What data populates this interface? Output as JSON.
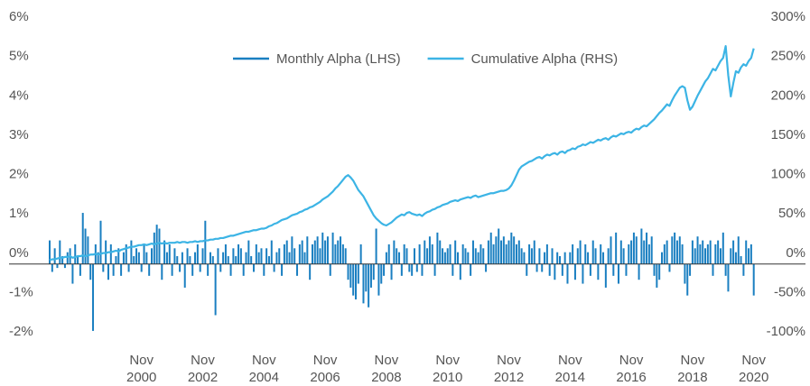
{
  "chart_data": {
    "type": "bar",
    "categories": [
      "1997-11",
      "1997-12",
      "1998-01",
      "1998-02",
      "1998-03",
      "1998-04",
      "1998-05",
      "1998-06",
      "1998-07",
      "1998-08",
      "1998-09",
      "1998-10",
      "1998-11",
      "1998-12",
      "1999-01",
      "1999-02",
      "1999-03",
      "1999-04",
      "1999-05",
      "1999-06",
      "1999-07",
      "1999-08",
      "1999-09",
      "1999-10",
      "1999-11",
      "1999-12",
      "2000-01",
      "2000-02",
      "2000-03",
      "2000-04",
      "2000-05",
      "2000-06",
      "2000-07",
      "2000-08",
      "2000-09",
      "2000-10",
      "2000-11",
      "2000-12",
      "2001-01",
      "2001-02",
      "2001-03",
      "2001-04",
      "2001-05",
      "2001-06",
      "2001-07",
      "2001-08",
      "2001-09",
      "2001-10",
      "2001-11",
      "2001-12",
      "2002-01",
      "2002-02",
      "2002-03",
      "2002-04",
      "2002-05",
      "2002-06",
      "2002-07",
      "2002-08",
      "2002-09",
      "2002-10",
      "2002-11",
      "2002-12",
      "2003-01",
      "2003-02",
      "2003-03",
      "2003-04",
      "2003-05",
      "2003-06",
      "2003-07",
      "2003-08",
      "2003-09",
      "2003-10",
      "2003-11",
      "2003-12",
      "2004-01",
      "2004-02",
      "2004-03",
      "2004-04",
      "2004-05",
      "2004-06",
      "2004-07",
      "2004-08",
      "2004-09",
      "2004-10",
      "2004-11",
      "2004-12",
      "2005-01",
      "2005-02",
      "2005-03",
      "2005-04",
      "2005-05",
      "2005-06",
      "2005-07",
      "2005-08",
      "2005-09",
      "2005-10",
      "2005-11",
      "2005-12",
      "2006-01",
      "2006-02",
      "2006-03",
      "2006-04",
      "2006-05",
      "2006-06",
      "2006-07",
      "2006-08",
      "2006-09",
      "2006-10",
      "2006-11",
      "2006-12",
      "2007-01",
      "2007-02",
      "2007-03",
      "2007-04",
      "2007-05",
      "2007-06",
      "2007-07",
      "2007-08",
      "2007-09",
      "2007-10",
      "2007-11",
      "2007-12",
      "2008-01",
      "2008-02",
      "2008-03",
      "2008-04",
      "2008-05",
      "2008-06",
      "2008-07",
      "2008-08",
      "2008-09",
      "2008-10",
      "2008-11",
      "2008-12",
      "2009-01",
      "2009-02",
      "2009-03",
      "2009-04",
      "2009-05",
      "2009-06",
      "2009-07",
      "2009-08",
      "2009-09",
      "2009-10",
      "2009-11",
      "2009-12",
      "2010-01",
      "2010-02",
      "2010-03",
      "2010-04",
      "2010-05",
      "2010-06",
      "2010-07",
      "2010-08",
      "2010-09",
      "2010-10",
      "2010-11",
      "2010-12",
      "2011-01",
      "2011-02",
      "2011-03",
      "2011-04",
      "2011-05",
      "2011-06",
      "2011-07",
      "2011-08",
      "2011-09",
      "2011-10",
      "2011-11",
      "2011-12",
      "2012-01",
      "2012-02",
      "2012-03",
      "2012-04",
      "2012-05",
      "2012-06",
      "2012-07",
      "2012-08",
      "2012-09",
      "2012-10",
      "2012-11",
      "2012-12",
      "2013-01",
      "2013-02",
      "2013-03",
      "2013-04",
      "2013-05",
      "2013-06",
      "2013-07",
      "2013-08",
      "2013-09",
      "2013-10",
      "2013-11",
      "2013-12",
      "2014-01",
      "2014-02",
      "2014-03",
      "2014-04",
      "2014-05",
      "2014-06",
      "2014-07",
      "2014-08",
      "2014-09",
      "2014-10",
      "2014-11",
      "2014-12",
      "2015-01",
      "2015-02",
      "2015-03",
      "2015-04",
      "2015-05",
      "2015-06",
      "2015-07",
      "2015-08",
      "2015-09",
      "2015-10",
      "2015-11",
      "2015-12",
      "2016-01",
      "2016-02",
      "2016-03",
      "2016-04",
      "2016-05",
      "2016-06",
      "2016-07",
      "2016-08",
      "2016-09",
      "2016-10",
      "2016-11",
      "2016-12",
      "2017-01",
      "2017-02",
      "2017-03",
      "2017-04",
      "2017-05",
      "2017-06",
      "2017-07",
      "2017-08",
      "2017-09",
      "2017-10",
      "2017-11",
      "2017-12",
      "2018-01",
      "2018-02",
      "2018-03",
      "2018-04",
      "2018-05",
      "2018-06",
      "2018-07",
      "2018-08",
      "2018-09",
      "2018-10",
      "2018-11",
      "2018-12",
      "2019-01",
      "2019-02",
      "2019-03",
      "2019-04",
      "2019-05",
      "2019-06",
      "2019-07",
      "2019-08",
      "2019-09",
      "2019-10",
      "2019-11",
      "2019-12",
      "2020-01",
      "2020-02",
      "2020-03",
      "2020-04",
      "2020-05",
      "2020-06",
      "2020-07",
      "2020-08",
      "2020-09",
      "2020-10",
      "2020-11"
    ],
    "series": [
      {
        "name": "Monthly Alpha (LHS)",
        "type": "bar",
        "color": "#1a7fc1",
        "values": [
          0.6,
          -0.2,
          0.4,
          -0.1,
          0.6,
          0.2,
          -0.1,
          0.3,
          0.4,
          -0.5,
          0.5,
          0.2,
          -0.3,
          1.3,
          0.9,
          0.7,
          -0.4,
          -1.7,
          0.5,
          0.3,
          1.1,
          -0.2,
          0.6,
          -0.4,
          0.5,
          -0.3,
          0.2,
          0.4,
          -0.3,
          0.3,
          0.5,
          -0.2,
          0.6,
          0.2,
          0.4,
          0.3,
          -0.2,
          0.5,
          0.3,
          -0.3,
          0.4,
          0.8,
          1.0,
          0.9,
          -0.4,
          0.6,
          0.3,
          0.5,
          -0.3,
          0.4,
          0.2,
          -0.2,
          0.3,
          -0.6,
          0.4,
          0.2,
          -0.3,
          0.3,
          0.5,
          -0.2,
          0.4,
          1.1,
          -0.3,
          0.3,
          0.2,
          -1.3,
          0.4,
          -0.2,
          0.3,
          0.5,
          0.2,
          -0.3,
          0.4,
          0.2,
          0.5,
          0.4,
          -0.3,
          0.3,
          0.6,
          0.2,
          -0.2,
          0.5,
          0.3,
          0.4,
          -0.3,
          0.4,
          0.2,
          0.6,
          -0.2,
          0.3,
          0.4,
          -0.3,
          0.5,
          0.6,
          0.3,
          0.7,
          0.4,
          -0.3,
          0.5,
          0.6,
          0.3,
          0.7,
          -0.4,
          0.5,
          0.6,
          0.7,
          0.4,
          0.8,
          0.6,
          0.7,
          -0.3,
          0.8,
          0.5,
          0.6,
          0.7,
          0.5,
          0.4,
          -0.4,
          -0.6,
          -0.8,
          -0.9,
          -0.5,
          0.5,
          -1.0,
          -0.7,
          -1.1,
          -0.6,
          -0.4,
          0.9,
          -0.8,
          -0.5,
          -0.3,
          0.3,
          0.5,
          -0.4,
          0.6,
          0.4,
          0.3,
          -0.3,
          0.5,
          0.4,
          -0.2,
          -0.3,
          0.4,
          -0.2,
          0.5,
          -0.3,
          0.6,
          0.4,
          0.7,
          0.5,
          -0.3,
          0.8,
          0.6,
          0.4,
          0.3,
          0.4,
          0.5,
          -0.3,
          0.6,
          0.3,
          -0.4,
          0.5,
          0.4,
          0.3,
          -0.3,
          0.6,
          0.4,
          0.3,
          0.5,
          0.4,
          -0.2,
          0.6,
          0.8,
          0.5,
          0.7,
          0.9,
          0.6,
          0.7,
          0.5,
          0.6,
          0.8,
          0.7,
          0.5,
          0.6,
          0.4,
          0.3,
          -0.3,
          0.5,
          0.4,
          0.6,
          -0.2,
          0.4,
          -0.2,
          0.3,
          0.5,
          -0.3,
          0.4,
          -0.4,
          0.3,
          0.2,
          -0.3,
          0.3,
          -0.5,
          0.3,
          0.5,
          -0.4,
          0.4,
          0.6,
          -0.5,
          0.5,
          0.3,
          -0.3,
          0.6,
          0.4,
          -0.4,
          0.5,
          0.3,
          -0.6,
          0.4,
          0.7,
          -0.3,
          0.8,
          -0.5,
          0.6,
          0.4,
          -0.3,
          0.5,
          0.6,
          0.8,
          0.7,
          -0.4,
          0.9,
          0.6,
          0.8,
          0.5,
          0.7,
          -0.3,
          -0.6,
          -0.4,
          0.3,
          0.5,
          0.6,
          -0.2,
          0.7,
          0.8,
          0.6,
          0.7,
          0.5,
          -0.5,
          -0.8,
          -0.3,
          0.6,
          0.4,
          0.7,
          0.5,
          0.6,
          0.4,
          0.5,
          0.6,
          -0.3,
          0.5,
          0.6,
          0.4,
          0.8,
          -0.3,
          -0.7,
          0.4,
          0.6,
          0.3,
          0.7,
          0.2,
          -0.3,
          0.6,
          0.4,
          0.5,
          -0.8
        ]
      },
      {
        "name": "Cumulative Alpha (RHS)",
        "type": "line",
        "axis": "y2",
        "color": "#3cb4e5",
        "values": [
          5,
          6,
          6,
          7,
          8,
          8,
          9,
          9,
          10,
          8,
          9,
          10,
          10,
          11,
          10,
          11,
          12,
          12,
          13,
          12,
          13,
          14,
          14,
          15,
          15,
          16,
          17,
          16,
          18,
          19,
          20,
          21,
          22,
          22,
          23,
          24,
          24,
          25,
          24,
          25,
          26,
          25,
          26,
          27,
          26,
          27,
          26,
          27,
          27,
          27,
          28,
          27,
          28,
          28,
          27,
          28,
          28,
          29,
          28,
          29,
          29,
          30,
          30,
          31,
          31,
          32,
          32,
          33,
          33,
          34,
          35,
          36,
          36,
          37,
          38,
          39,
          40,
          41,
          41,
          42,
          43,
          43,
          44,
          45,
          45,
          46,
          48,
          49,
          51,
          52,
          54,
          56,
          57,
          58,
          60,
          62,
          63,
          64,
          66,
          67,
          69,
          70,
          72,
          73,
          75,
          77,
          79,
          82,
          84,
          86,
          89,
          92,
          96,
          99,
          103,
          107,
          111,
          113,
          110,
          106,
          100,
          94,
          90,
          86,
          80,
          74,
          68,
          62,
          58,
          55,
          52,
          50,
          49,
          51,
          53,
          56,
          59,
          61,
          63,
          62,
          65,
          66,
          64,
          63,
          62,
          63,
          61,
          64,
          66,
          67,
          69,
          70,
          72,
          73,
          75,
          76,
          77,
          79,
          80,
          81,
          80,
          82,
          83,
          84,
          85,
          84,
          86,
          87,
          85,
          86,
          87,
          88,
          89,
          90,
          90,
          91,
          92,
          93,
          93,
          94,
          96,
          100,
          106,
          113,
          120,
          124,
          126,
          128,
          130,
          131,
          133,
          135,
          136,
          134,
          137,
          139,
          138,
          140,
          141,
          139,
          142,
          143,
          141,
          144,
          145,
          147,
          146,
          149,
          150,
          152,
          151,
          153,
          155,
          154,
          156,
          158,
          157,
          159,
          160,
          158,
          161,
          163,
          162,
          164,
          166,
          165,
          167,
          168,
          167,
          170,
          172,
          171,
          174,
          176,
          175,
          178,
          181,
          184,
          188,
          192,
          195,
          199,
          203,
          201,
          208,
          214,
          219,
          224,
          226,
          224,
          208,
          196,
          200,
          207,
          214,
          220,
          226,
          232,
          236,
          242,
          248,
          246,
          252,
          258,
          262,
          277,
          240,
          213,
          230,
          245,
          243,
          250,
          254,
          252,
          258,
          262,
          274
        ]
      }
    ],
    "ylim": [
      -2,
      6
    ],
    "yticks": [
      {
        "value": -2,
        "label": "-2%"
      },
      {
        "value": -1,
        "label": "-1%"
      },
      {
        "value": 0,
        "label": "0%"
      },
      {
        "value": 1,
        "label": "1%"
      },
      {
        "value": 2,
        "label": "2%"
      },
      {
        "value": 3,
        "label": "3%"
      },
      {
        "value": 4,
        "label": "4%"
      },
      {
        "value": 5,
        "label": "5%"
      },
      {
        "value": 6,
        "label": "6%"
      }
    ],
    "y2lim": [
      -100,
      300
    ],
    "y2ticks": [
      {
        "value": -100,
        "label": "-100%"
      },
      {
        "value": -50,
        "label": "-50%"
      },
      {
        "value": 0,
        "label": "0%"
      },
      {
        "value": 50,
        "label": "50%"
      },
      {
        "value": 100,
        "label": "100%"
      },
      {
        "value": 150,
        "label": "150%"
      },
      {
        "value": 200,
        "label": "200%"
      },
      {
        "value": 250,
        "label": "250%"
      },
      {
        "value": 300,
        "label": "300%"
      }
    ],
    "xticks": [
      {
        "value": "2000-11",
        "label": "Nov 2000"
      },
      {
        "value": "2002-11",
        "label": "Nov 2002"
      },
      {
        "value": "2004-11",
        "label": "Nov 2004"
      },
      {
        "value": "2006-11",
        "label": "Nov 2006"
      },
      {
        "value": "2008-11",
        "label": "Nov 2008"
      },
      {
        "value": "2010-11",
        "label": "Nov 2010"
      },
      {
        "value": "2012-11",
        "label": "Nov 2012"
      },
      {
        "value": "2014-11",
        "label": "Nov 2014"
      },
      {
        "value": "2016-11",
        "label": "Nov 2016"
      },
      {
        "value": "2018-11",
        "label": "Nov 2018"
      },
      {
        "value": "2020-11",
        "label": "Nov 2020"
      }
    ],
    "legend": "top"
  }
}
